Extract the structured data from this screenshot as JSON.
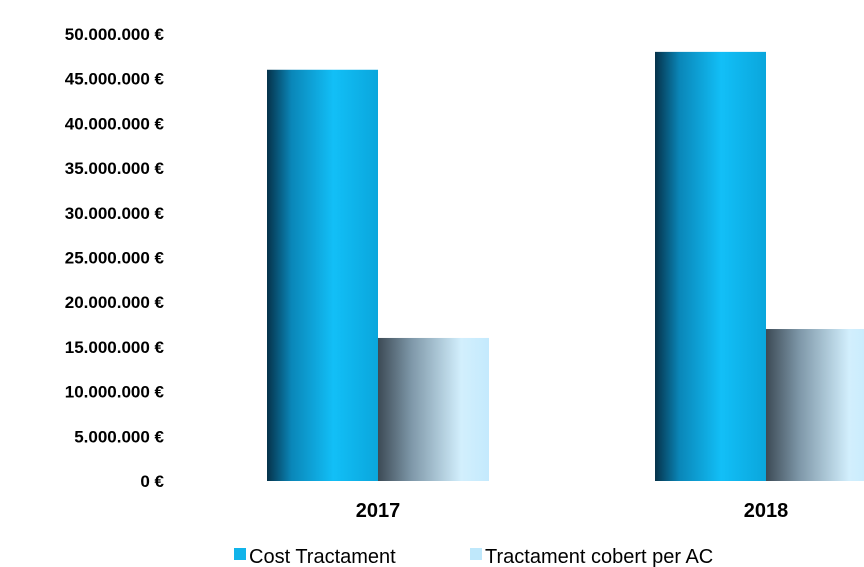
{
  "chart_data": {
    "type": "bar",
    "categories": [
      "2017",
      "2018"
    ],
    "series": [
      {
        "name": "Cost Tractament",
        "values": [
          46000000,
          48000000
        ],
        "color": "#11b4ea"
      },
      {
        "name": "Tractament cobert per AC",
        "values": [
          16000000,
          17000000
        ],
        "color": "#bfe8fb"
      }
    ],
    "ylim": [
      0,
      50000000
    ],
    "yticks": [
      0,
      5000000,
      10000000,
      15000000,
      20000000,
      25000000,
      30000000,
      35000000,
      40000000,
      45000000,
      50000000
    ],
    "ytick_labels": [
      "0 €",
      "5.000.000 €",
      "10.000.000 €",
      "15.000.000 €",
      "20.000.000 €",
      "25.000.000 €",
      "30.000.000 €",
      "35.000.000 €",
      "40.000.000 €",
      "45.000.000 €",
      "50.000.000 €"
    ],
    "grid": false,
    "legend_position": "bottom"
  }
}
